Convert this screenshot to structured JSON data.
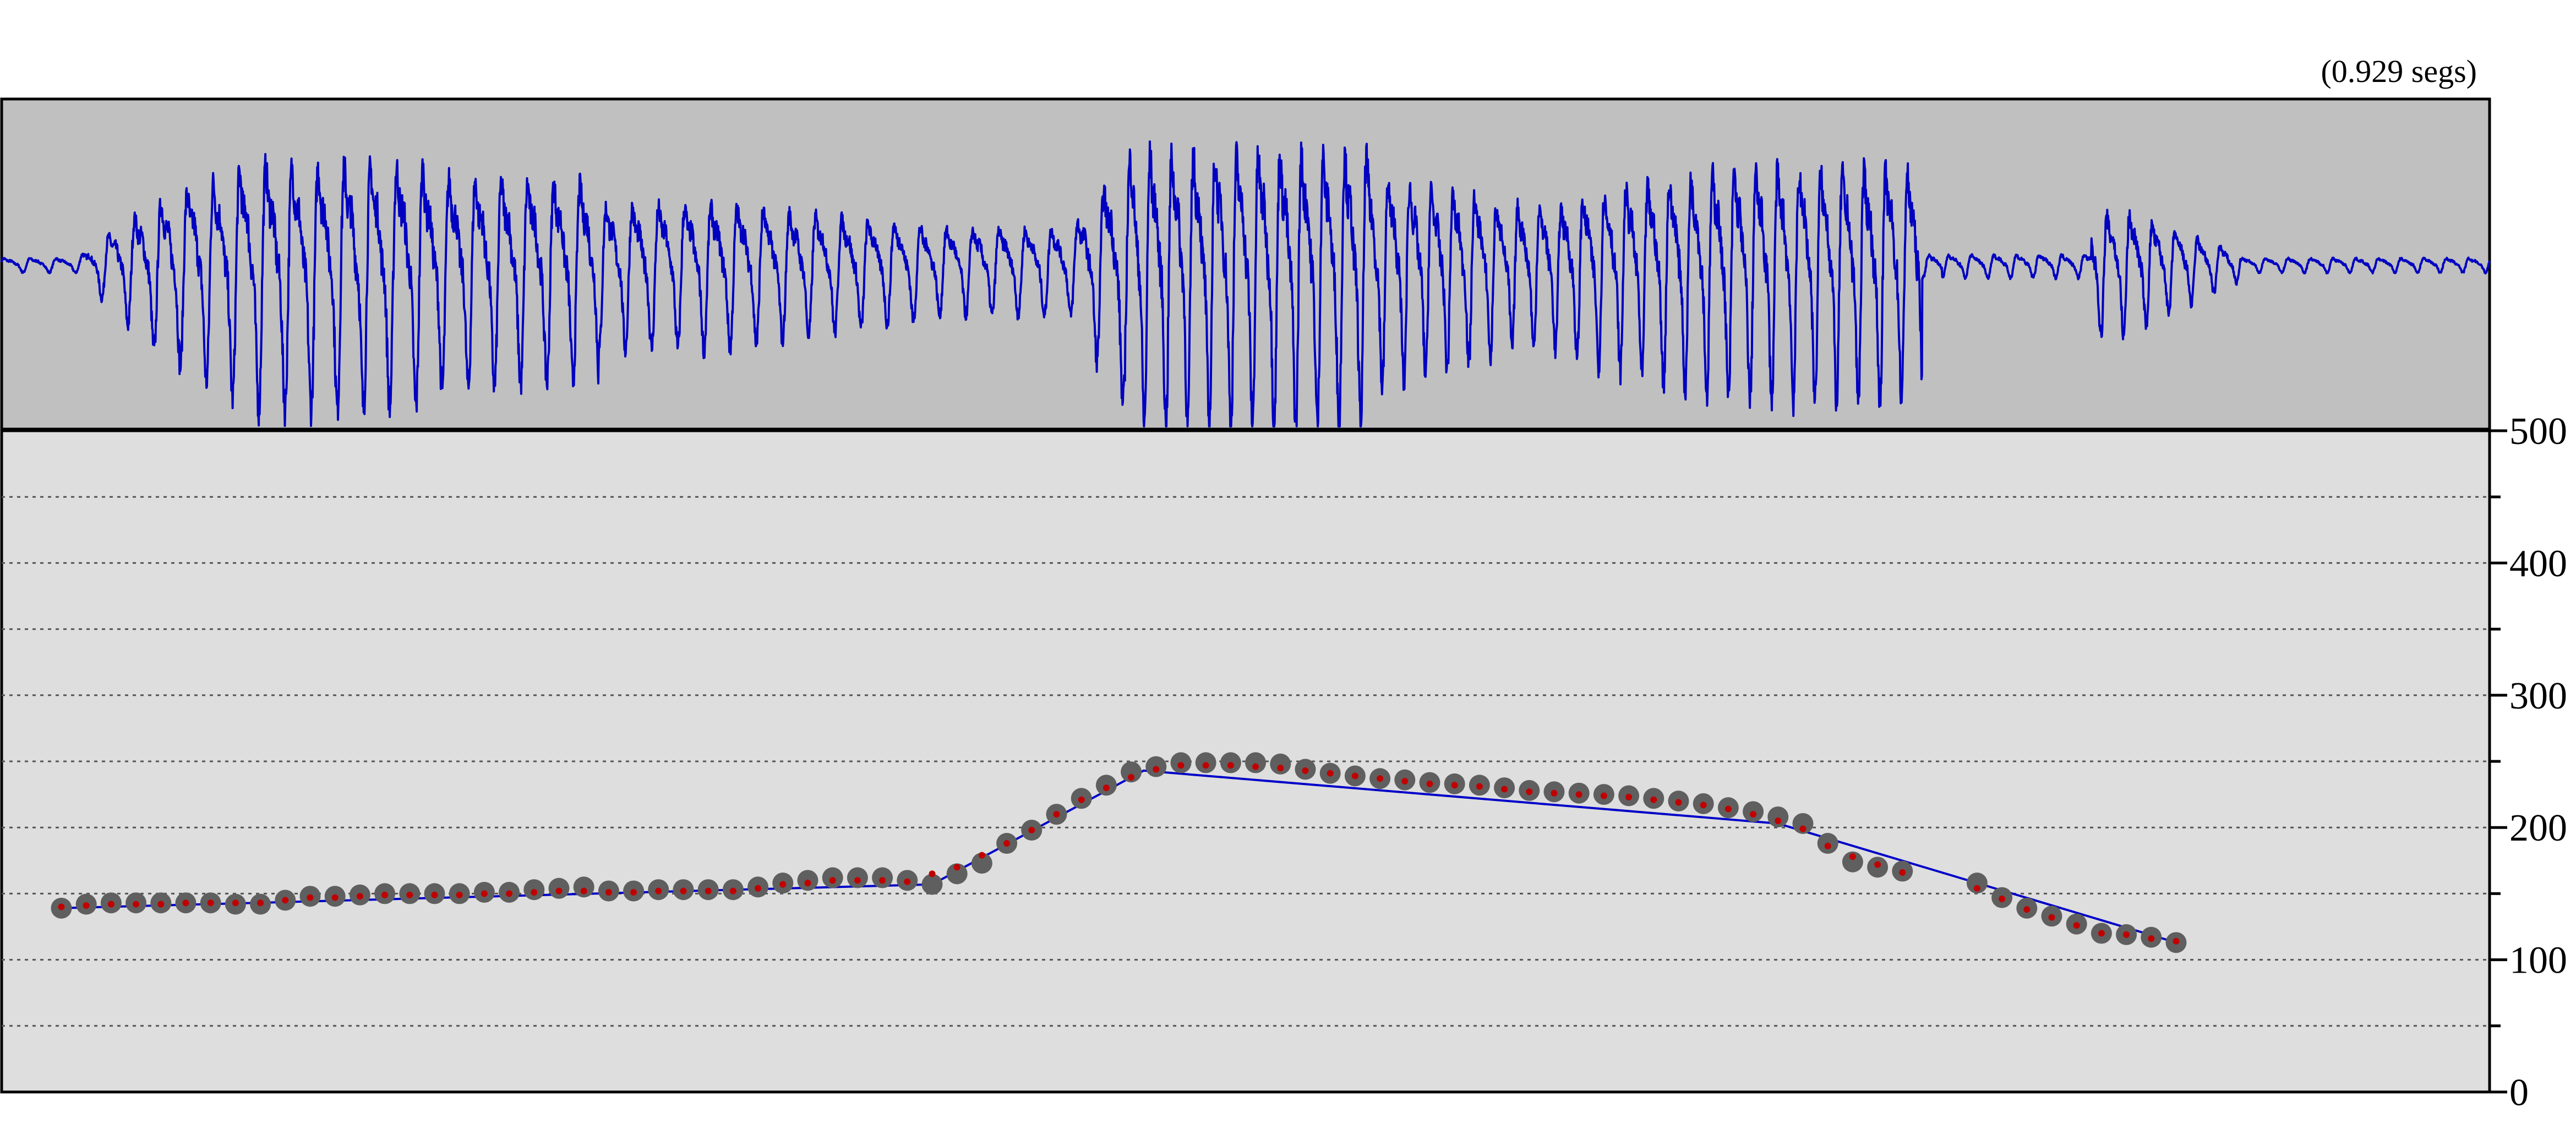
{
  "duration_label": "(0.929 segs)",
  "colors": {
    "waveform_bg": "#c0c0c0",
    "pitch_bg": "#dedede",
    "waveform": "#0000c0",
    "stylized_line": "#0000c8",
    "measured_point": "#5f5f5f",
    "stylized_point": "#c00000",
    "gridline": "#555555"
  },
  "chart_data": {
    "type": "scatter",
    "xlabel": "",
    "ylabel": "",
    "ylim": [
      0,
      500
    ],
    "yticks_major": [
      0,
      100,
      200,
      300,
      400,
      500
    ],
    "yticks_minor": [
      50,
      150,
      250,
      350,
      450
    ],
    "grid": true,
    "legend": "none",
    "series": [
      {
        "role": "measured",
        "x": [
          0.024,
          0.034,
          0.044,
          0.054,
          0.064,
          0.074,
          0.084,
          0.094,
          0.104,
          0.114,
          0.124,
          0.134,
          0.144,
          0.154,
          0.164,
          0.174,
          0.184,
          0.194,
          0.204,
          0.214,
          0.224,
          0.234,
          0.244,
          0.254,
          0.264,
          0.274,
          0.284,
          0.294,
          0.304,
          0.314,
          0.324,
          0.334,
          0.344,
          0.354,
          0.364,
          0.374,
          0.384,
          0.394,
          0.404,
          0.414,
          0.424,
          0.434,
          0.444,
          0.454,
          0.464,
          0.474,
          0.484,
          0.494,
          0.504,
          0.514,
          0.524,
          0.534,
          0.544,
          0.554,
          0.564,
          0.574,
          0.584,
          0.594,
          0.604,
          0.614,
          0.624,
          0.634,
          0.644,
          0.654,
          0.664,
          0.674,
          0.684,
          0.694,
          0.704,
          0.714,
          0.724,
          0.734,
          0.744,
          0.754,
          0.764,
          0.794,
          0.804,
          0.814,
          0.824,
          0.834,
          0.844,
          0.854,
          0.864,
          0.874
        ],
        "values": [
          139,
          142,
          143,
          143,
          143,
          143,
          143,
          142,
          142,
          145,
          148,
          148,
          149,
          150,
          150,
          150,
          150,
          151,
          151,
          153,
          154,
          155,
          152,
          152,
          153,
          153,
          153,
          153,
          155,
          158,
          160,
          162,
          162,
          162,
          160,
          157,
          165,
          173,
          188,
          198,
          210,
          222,
          232,
          242,
          246,
          249,
          249,
          249,
          249,
          248,
          244,
          241,
          239,
          237,
          236,
          234,
          233,
          232,
          230,
          228,
          227,
          226,
          225,
          224,
          222,
          220,
          218,
          215,
          212,
          208,
          203,
          188,
          174,
          170,
          167,
          158,
          147,
          139,
          133,
          127,
          120,
          119,
          117,
          113
        ]
      },
      {
        "role": "stylized",
        "x": [
          0.024,
          0.034,
          0.044,
          0.054,
          0.064,
          0.074,
          0.084,
          0.094,
          0.104,
          0.114,
          0.124,
          0.134,
          0.144,
          0.154,
          0.164,
          0.174,
          0.184,
          0.194,
          0.204,
          0.214,
          0.224,
          0.234,
          0.244,
          0.254,
          0.264,
          0.274,
          0.284,
          0.294,
          0.304,
          0.314,
          0.324,
          0.334,
          0.344,
          0.354,
          0.364,
          0.374,
          0.384,
          0.394,
          0.404,
          0.414,
          0.424,
          0.434,
          0.444,
          0.454,
          0.464,
          0.474,
          0.484,
          0.494,
          0.504,
          0.514,
          0.524,
          0.534,
          0.544,
          0.554,
          0.564,
          0.574,
          0.584,
          0.594,
          0.604,
          0.614,
          0.624,
          0.634,
          0.644,
          0.654,
          0.664,
          0.674,
          0.684,
          0.694,
          0.704,
          0.714,
          0.724,
          0.734,
          0.744,
          0.754,
          0.764,
          0.794,
          0.804,
          0.814,
          0.824,
          0.834,
          0.844,
          0.854,
          0.864,
          0.874
        ],
        "values": [
          140,
          141,
          142,
          142,
          142,
          143,
          143,
          143,
          143,
          145,
          147,
          147,
          148,
          149,
          149,
          149,
          149,
          150,
          150,
          151,
          152,
          152,
          151,
          151,
          152,
          152,
          152,
          152,
          154,
          157,
          158,
          160,
          160,
          160,
          159,
          165,
          170,
          179,
          188,
          198,
          210,
          221,
          230,
          238,
          244,
          247,
          247,
          247,
          246,
          245,
          243,
          241,
          239,
          237,
          235,
          233,
          232,
          231,
          229,
          227,
          226,
          225,
          224,
          223,
          221,
          219,
          217,
          214,
          210,
          205,
          199,
          186,
          178,
          172,
          166,
          154,
          146,
          138,
          132,
          126,
          120,
          119,
          116,
          114
        ]
      },
      {
        "role": "stylization-line",
        "x": [
          0.024,
          0.374,
          0.459,
          0.714,
          0.874
        ],
        "values": [
          139,
          157,
          243,
          203,
          113
        ]
      }
    ]
  }
}
